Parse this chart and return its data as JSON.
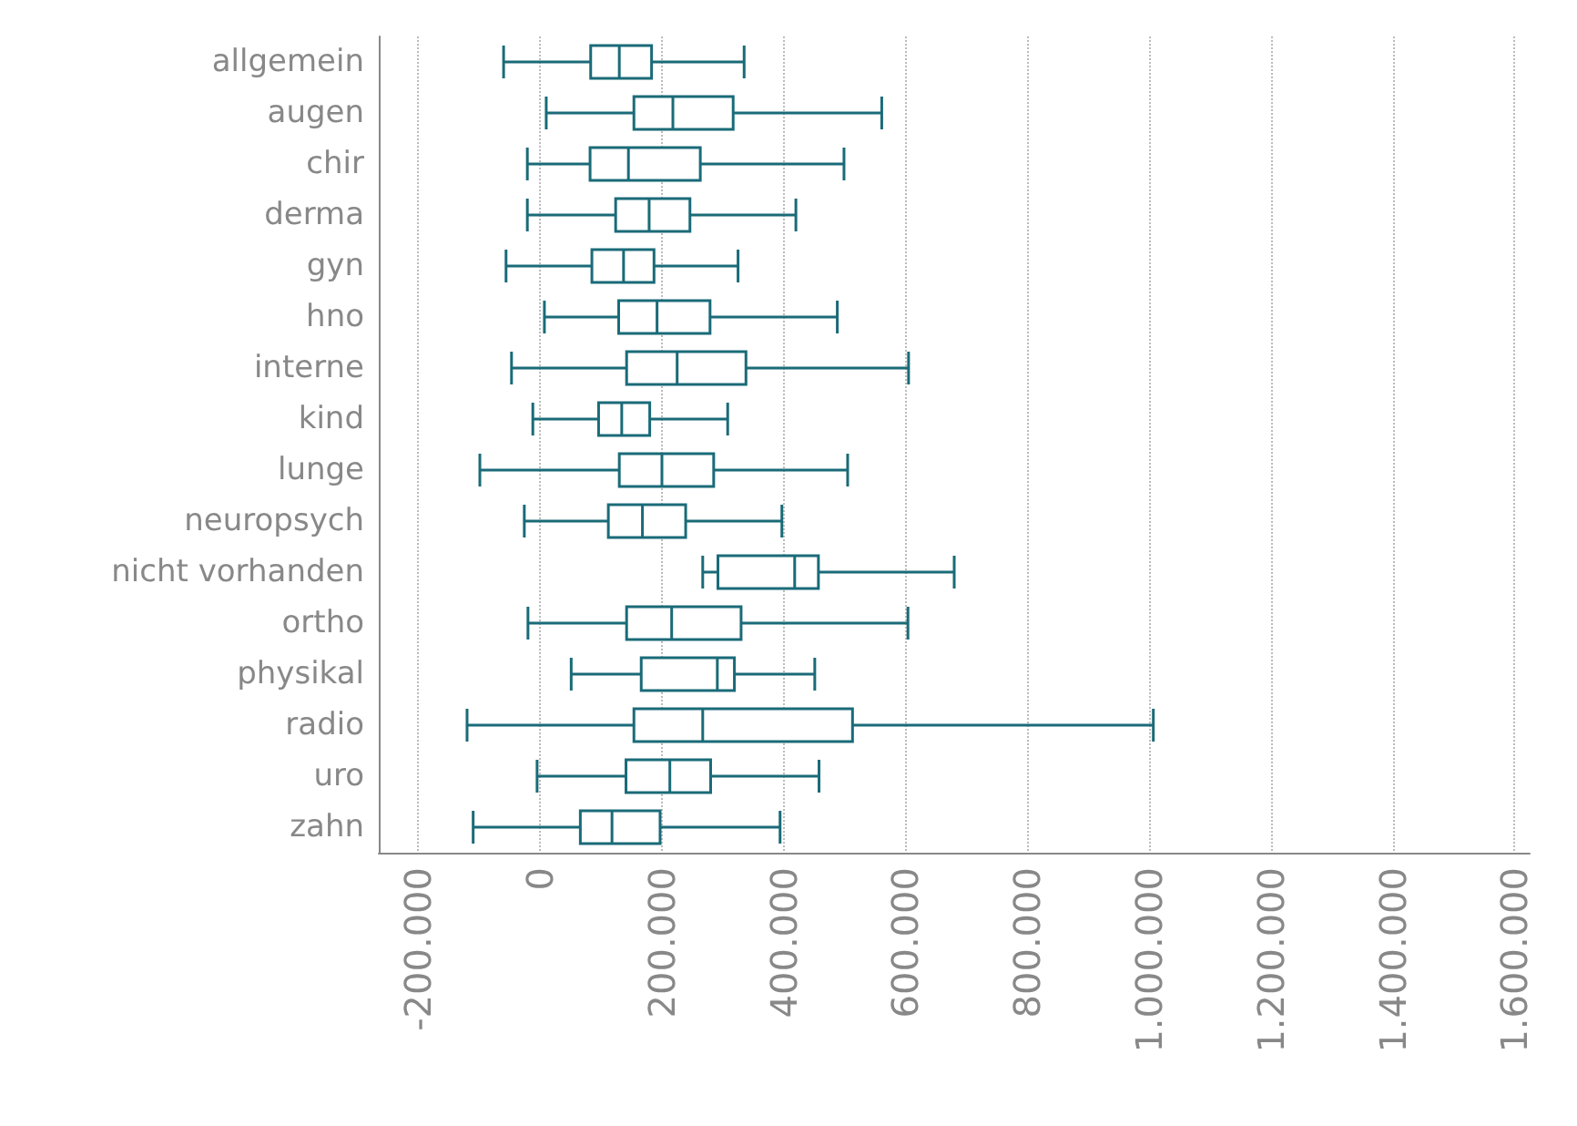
{
  "chart_data": {
    "type": "box",
    "orientation": "horizontal",
    "color": "#1a6b78",
    "grid": "x",
    "categories": [
      "allgemein",
      "augen",
      "chir",
      "derma",
      "gyn",
      "hno",
      "interne",
      "kind",
      "lunge",
      "neuropsych",
      "nicht vorhanden",
      "ortho",
      "physikal",
      "radio",
      "uro",
      "zahn"
    ],
    "boxes": [
      {
        "low": -60000,
        "q1": 83000,
        "median": 130000,
        "q3": 183000,
        "high": 335000
      },
      {
        "low": 10000,
        "q1": 154000,
        "median": 218000,
        "q3": 317000,
        "high": 561000
      },
      {
        "low": -21000,
        "q1": 82000,
        "median": 145000,
        "q3": 263000,
        "high": 499000
      },
      {
        "low": -21000,
        "q1": 124000,
        "median": 179000,
        "q3": 246000,
        "high": 420000
      },
      {
        "low": -56000,
        "q1": 85000,
        "median": 137000,
        "q3": 187000,
        "high": 325000
      },
      {
        "low": 7000,
        "q1": 129000,
        "median": 192000,
        "q3": 279000,
        "high": 488000
      },
      {
        "low": -47000,
        "q1": 142000,
        "median": 225000,
        "q3": 338000,
        "high": 605000
      },
      {
        "low": -12000,
        "q1": 96000,
        "median": 134000,
        "q3": 180000,
        "high": 308000
      },
      {
        "low": -99000,
        "q1": 130000,
        "median": 200000,
        "q3": 285000,
        "high": 505000
      },
      {
        "low": -26000,
        "q1": 112000,
        "median": 168000,
        "q3": 239000,
        "high": 397000
      },
      {
        "low": 267000,
        "q1": 292000,
        "median": 418000,
        "q3": 457000,
        "high": 680000
      },
      {
        "low": -20000,
        "q1": 142000,
        "median": 216000,
        "q3": 330000,
        "high": 604000
      },
      {
        "low": 51000,
        "q1": 166000,
        "median": 291000,
        "q3": 319000,
        "high": 451000
      },
      {
        "low": -120000,
        "q1": 154000,
        "median": 267000,
        "q3": 513000,
        "high": 1007000
      },
      {
        "low": -5000,
        "q1": 141000,
        "median": 213000,
        "q3": 280000,
        "high": 458000
      },
      {
        "low": -110000,
        "q1": 66000,
        "median": 118000,
        "q3": 197000,
        "high": 394000
      }
    ],
    "xlim": [
      -265000,
      1625000
    ],
    "xticks": [
      {
        "value": -200000,
        "label": "-200.000"
      },
      0,
      {
        "value": 200000,
        "label": "200.000"
      },
      {
        "value": 400000,
        "label": "400.000"
      },
      {
        "value": 600000,
        "label": "600.000"
      },
      {
        "value": 800000,
        "label": "800.000"
      },
      {
        "value": 1000000,
        "label": "1.000.000"
      },
      {
        "value": 1200000,
        "label": "1.200.000"
      },
      {
        "value": 1400000,
        "label": "1.400.000"
      },
      {
        "value": 1600000,
        "label": "1.600.000"
      }
    ]
  }
}
